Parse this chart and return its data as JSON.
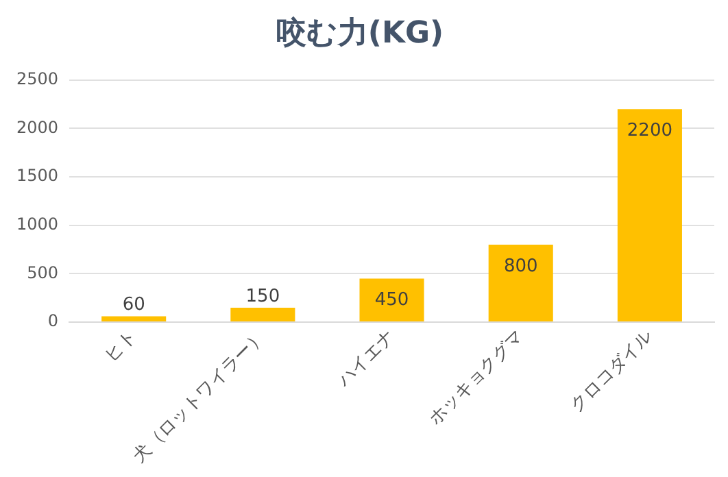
{
  "chart_data": {
    "type": "bar",
    "title": "咬む力(KG)",
    "categories": [
      "ヒト",
      "犬（ロットワイラー）",
      "ハイエナ",
      "ホッキョクグマ",
      "クロコダイル"
    ],
    "values": [
      60,
      150,
      450,
      800,
      2200
    ],
    "color": "#ffc000",
    "ylim": [
      0,
      2500
    ],
    "yticks": [
      0,
      500,
      1000,
      1500,
      2000,
      2500
    ],
    "grid": "y",
    "data_labels": true
  }
}
